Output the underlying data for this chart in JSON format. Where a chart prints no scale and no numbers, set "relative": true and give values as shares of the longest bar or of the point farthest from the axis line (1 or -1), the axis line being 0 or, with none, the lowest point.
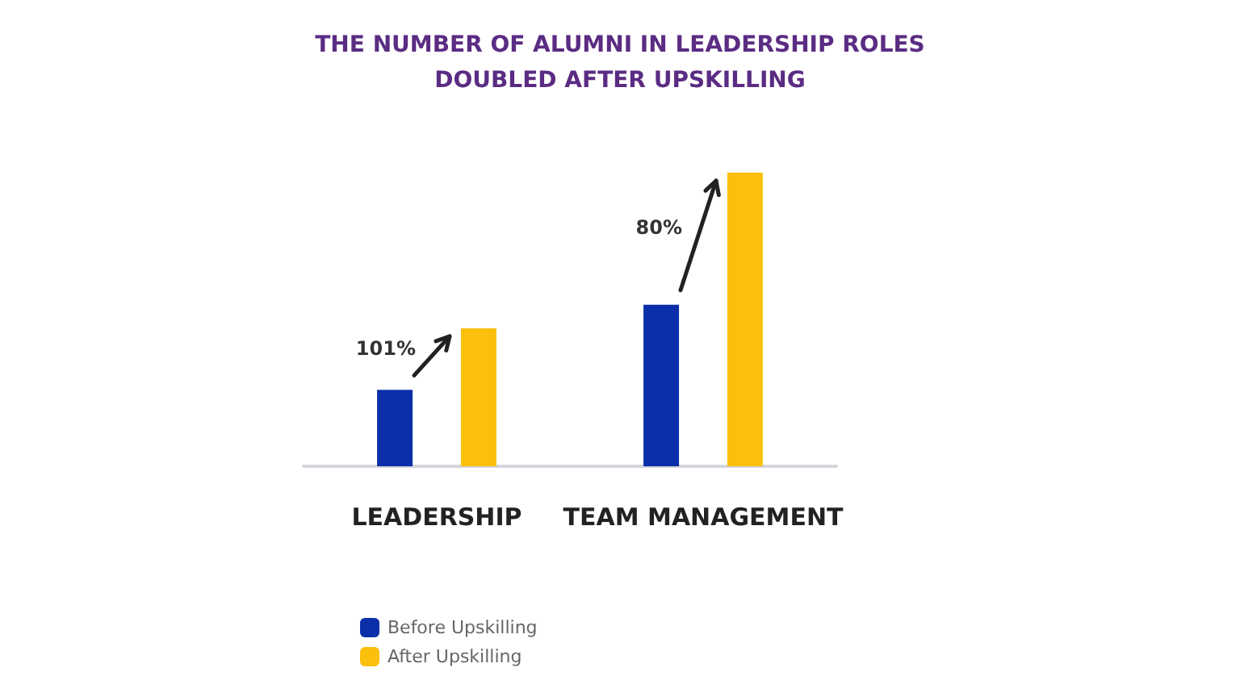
{
  "chart_data": {
    "type": "bar",
    "title": "THE NUMBER OF ALUMNI IN LEADERSHIP ROLES\nDOUBLED AFTER UPSKILLING",
    "categories": [
      "LEADERSHIP",
      "TEAM MANAGEMENT"
    ],
    "relative": true,
    "series": [
      {
        "name": "Before Upskilling",
        "color": "#0b2fa8",
        "values": [
          0.26,
          0.55
        ]
      },
      {
        "name": "After Upskilling",
        "color": "#fbbf0e",
        "values": [
          0.47,
          1
        ]
      }
    ],
    "annotations": [
      "101%",
      "80%"
    ],
    "legend": "bottom left",
    "grid": false
  }
}
